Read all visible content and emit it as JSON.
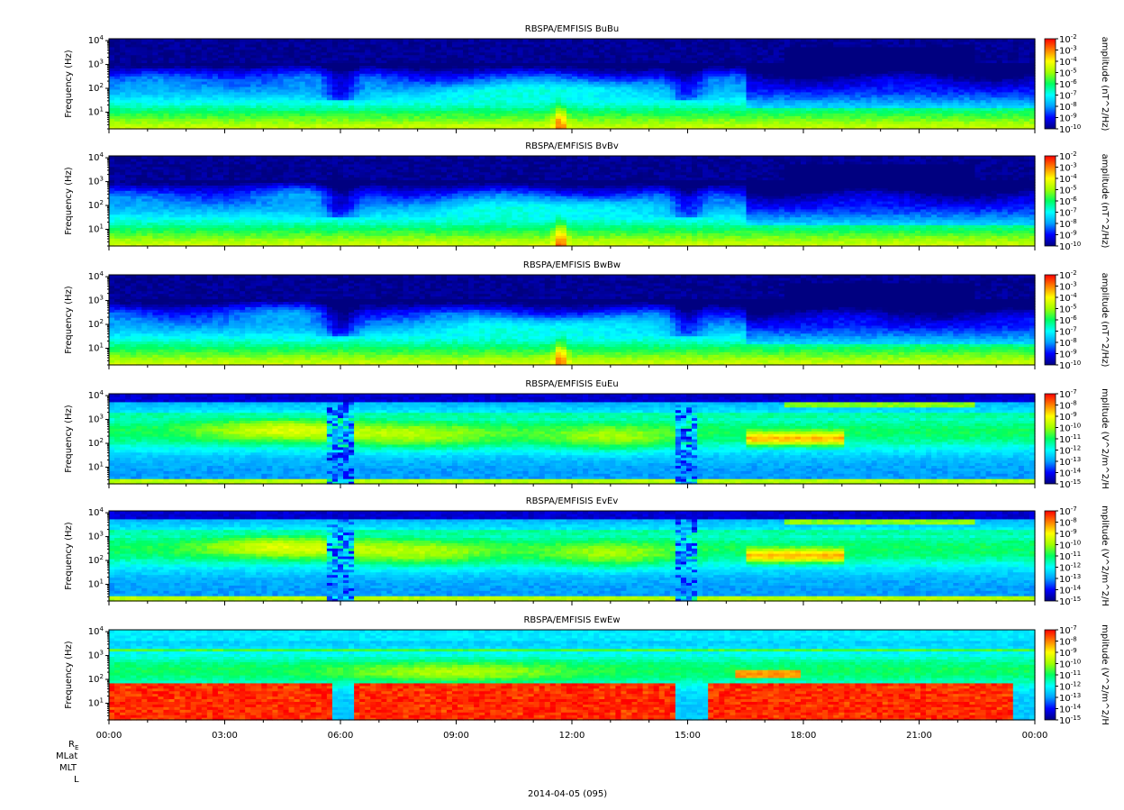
{
  "chart_data": {
    "type": "heatmap",
    "date_label": "2014-04-05 (095)",
    "ephemeris_labels": [
      "RE",
      "MLat",
      "MLT",
      "L"
    ],
    "x_tick_labels": [
      "00:00",
      "03:00",
      "06:00",
      "09:00",
      "12:00",
      "15:00",
      "18:00",
      "21:00",
      "00:00"
    ],
    "x_range_hours": [
      0,
      24
    ],
    "y_scale": "log",
    "y_range_hz": [
      2,
      12000
    ],
    "y_tick_values": [
      10,
      100,
      1000,
      10000
    ],
    "colormap": [
      "#000080",
      "#0000ff",
      "#00a0ff",
      "#00ffff",
      "#00ff60",
      "#a0ff00",
      "#ffff00",
      "#ff8000",
      "#ff0000"
    ],
    "panels": [
      {
        "id": "bubu",
        "title": "RBSPA/EMFISIS  BuBu",
        "ylabel": "Frequency (Hz)",
        "cbar_label": "amplitude (nT^2/Hz)",
        "cbar_exponents": [
          -10,
          -9,
          -8,
          -7,
          -6,
          -5,
          -4,
          -3,
          -2
        ],
        "field": "B"
      },
      {
        "id": "bvbv",
        "title": "RBSPA/EMFISIS  BvBv",
        "ylabel": "Frequency (Hz)",
        "cbar_label": "amplitude (nT^2/Hz)",
        "cbar_exponents": [
          -10,
          -9,
          -8,
          -7,
          -6,
          -5,
          -4,
          -3,
          -2
        ],
        "field": "B"
      },
      {
        "id": "bwbw",
        "title": "RBSPA/EMFISIS  BwBw",
        "ylabel": "Frequency (Hz)",
        "cbar_label": "amplitude (nT^2/Hz)",
        "cbar_exponents": [
          -10,
          -9,
          -8,
          -7,
          -6,
          -5,
          -4,
          -3,
          -2
        ],
        "field": "B"
      },
      {
        "id": "eueu",
        "title": "RBSPA/EMFISIS  EuEu",
        "ylabel": "Frequency (Hz)",
        "cbar_label": "mplitude (V^2/m^2/H",
        "cbar_exponents": [
          -15,
          -14,
          -13,
          -12,
          -11,
          -10,
          -9,
          -8,
          -7
        ],
        "field": "E"
      },
      {
        "id": "evev",
        "title": "RBSPA/EMFISIS  EvEv",
        "ylabel": "Frequency (Hz)",
        "cbar_label": "mplitude (V^2/m^2/H",
        "cbar_exponents": [
          -15,
          -14,
          -13,
          -12,
          -11,
          -10,
          -9,
          -8,
          -7
        ],
        "field": "E"
      },
      {
        "id": "ewew",
        "title": "RBSPA/EMFISIS  EwEw",
        "ylabel": "Frequency (Hz)",
        "cbar_label": "mplitude (V^2/m^2/H",
        "cbar_exponents": [
          -15,
          -14,
          -13,
          -12,
          -11,
          -10,
          -9,
          -8,
          -7
        ],
        "field": "Ew"
      }
    ]
  }
}
